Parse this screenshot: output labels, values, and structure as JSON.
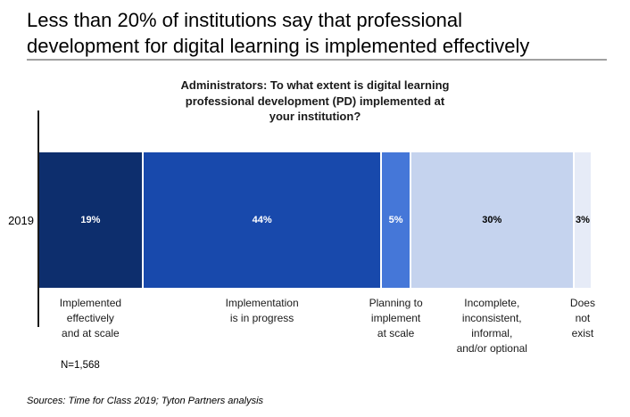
{
  "title": "Less than 20% of institutions say that professional\ndevelopment for digital learning is implemented effectively",
  "chart_data": {
    "type": "bar",
    "subtype": "horizontal-stacked-100-percent",
    "title": "Administrators: To what extent is digital learning\nprofessional development (PD) implemented at\nyour institution?",
    "row_label": "2019",
    "categories": [
      "Implemented\neffectively\nand at scale",
      "Implementation\nis in progress",
      "Planning to\nimplement\nat scale",
      "Incomplete,\ninconsistent, informal,\nand/or optional",
      "Does\nnot\nexist"
    ],
    "values": [
      19,
      44,
      5,
      30,
      3
    ],
    "value_labels": [
      "19%",
      "44%",
      "5%",
      "30%",
      "3%"
    ],
    "segment_colors": [
      "#0D2E6D",
      "#1849AC",
      "#4577D8",
      "#C5D3EE",
      "#E6EBF7"
    ],
    "value_label_colors": [
      "#FFFFFF",
      "#FFFFFF",
      "#FFFFFF",
      "#000000",
      "#000000"
    ],
    "n_label": "N=1,568",
    "xlim": [
      0,
      101
    ],
    "legend": "none",
    "grid": false,
    "axis_color": "#1A1A1A"
  },
  "footer": {
    "sources": "Sources: Time for Class 2019; Tyton Partners analysis"
  },
  "colors": {
    "background": "#FFFFFF",
    "title_text": "#000000",
    "title_rule": "#A0A0A0"
  }
}
